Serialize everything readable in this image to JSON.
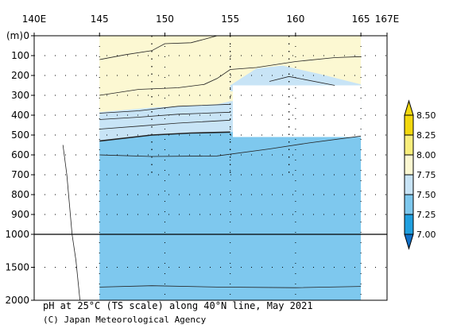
{
  "chart_data": {
    "type": "contour",
    "title": "pH at 25°C (TS scale) along 40°N line, May 2021",
    "credit": "(C) Japan Meteorological Agency",
    "ylabel": "(m)",
    "x_ticks": [
      {
        "value": 140,
        "label": "140E"
      },
      {
        "value": 145,
        "label": "145"
      },
      {
        "value": 150,
        "label": "150"
      },
      {
        "value": 155,
        "label": "155"
      },
      {
        "value": 160,
        "label": "160"
      },
      {
        "value": 165,
        "label": "165"
      },
      {
        "value": 167,
        "label": "167E"
      }
    ],
    "xlim": [
      140,
      167
    ],
    "y_ticks_upper": [
      0,
      100,
      200,
      300,
      400,
      500,
      600,
      700,
      800,
      900,
      1000
    ],
    "y_ticks_lower": [
      1000,
      1500,
      2000
    ],
    "ylim": [
      0,
      2000
    ],
    "y_break": 1000,
    "colorbar": {
      "labels": [
        "8.50",
        "8.25",
        "8.00",
        "7.75",
        "7.50",
        "7.25",
        "7.00"
      ],
      "levels": [
        8.5,
        8.25,
        8.0,
        7.75,
        7.5,
        7.25,
        7.0
      ],
      "colors": [
        "#f2d80e",
        "#f8ee7c",
        "#fcf8d2",
        "#c8e4f6",
        "#7ec8ee",
        "#20a0e0"
      ]
    },
    "section_xrange": [
      145,
      165
    ],
    "station_lons": [
      149,
      155,
      159.5
    ],
    "bands": [
      {
        "range": "7.75-8.00",
        "color": "#fcf8d2",
        "top": [
          [
            145,
            0
          ],
          [
            165,
            0
          ]
        ],
        "bottom": [
          [
            145,
            385
          ],
          [
            149,
            362
          ],
          [
            154,
            345
          ],
          [
            155,
            330
          ],
          [
            158,
            312
          ],
          [
            160,
            310
          ],
          [
            165,
            300
          ]
        ]
      },
      {
        "range": "7.50-7.75",
        "color": "#c8e4f6",
        "top": [
          [
            145,
            385
          ],
          [
            149,
            362
          ],
          [
            154,
            345
          ],
          [
            155,
            330
          ],
          [
            158,
            312
          ],
          [
            160,
            310
          ],
          [
            165,
            300
          ]
        ],
        "bottom": [
          [
            145,
            530
          ],
          [
            149,
            500
          ],
          [
            155,
            485
          ],
          [
            160,
            480
          ],
          [
            165,
            470
          ]
        ]
      },
      {
        "range": "7.25-7.50",
        "color": "#7ec8ee",
        "top": [
          [
            145,
            530
          ],
          [
            149,
            500
          ],
          [
            155,
            485
          ],
          [
            160,
            480
          ],
          [
            165,
            470
          ]
        ],
        "bottom": [
          [
            145,
            2000
          ],
          [
            165,
            2000
          ]
        ]
      }
    ],
    "upper_patch": {
      "range": "7.50-7.75",
      "color": "#c8e4f6",
      "points": [
        [
          155,
          250
        ],
        [
          157,
          165
        ],
        [
          159,
          150
        ],
        [
          162,
          195
        ],
        [
          165,
          245
        ],
        [
          165,
          275
        ],
        [
          159,
          270
        ],
        [
          155,
          280
        ]
      ]
    },
    "masked": [
      [
        155.2,
        250
      ],
      [
        165,
        250
      ],
      [
        165,
        510
      ],
      [
        155.2,
        510
      ]
    ],
    "contours": [
      {
        "level": 8.0,
        "points": [
          [
            145,
            120
          ],
          [
            147,
            95
          ],
          [
            149,
            75
          ],
          [
            150,
            40
          ],
          [
            152,
            35
          ],
          [
            153,
            18
          ],
          [
            154,
            0
          ]
        ]
      },
      {
        "level": 7.75,
        "points": [
          [
            145,
            300
          ],
          [
            148,
            270
          ],
          [
            151,
            262
          ],
          [
            153,
            245
          ],
          [
            154,
            215
          ],
          [
            155,
            170
          ],
          [
            157,
            160
          ],
          [
            160,
            130
          ],
          [
            163,
            110
          ],
          [
            165,
            105
          ]
        ]
      },
      {
        "level": 7.75,
        "points": [
          [
            158,
            230
          ],
          [
            159.5,
            205
          ],
          [
            163,
            250
          ]
        ]
      },
      {
        "level": 7.7,
        "points": [
          [
            145,
            390
          ],
          [
            148,
            378
          ],
          [
            151,
            355
          ],
          [
            155,
            345
          ]
        ]
      },
      {
        "level": 7.65,
        "points": [
          [
            145,
            422
          ],
          [
            148,
            410
          ],
          [
            151,
            395
          ],
          [
            155,
            385
          ]
        ]
      },
      {
        "level": 7.6,
        "points": [
          [
            145,
            470
          ],
          [
            148,
            455
          ],
          [
            151,
            440
          ],
          [
            155,
            425
          ]
        ]
      },
      {
        "level": 7.5,
        "points": [
          [
            145,
            530
          ],
          [
            149,
            500
          ],
          [
            152,
            490
          ],
          [
            155,
            485
          ]
        ],
        "bold": true
      },
      {
        "level": 7.45,
        "points": [
          [
            145,
            600
          ],
          [
            149,
            608
          ],
          [
            154,
            605
          ],
          [
            158,
            570
          ],
          [
            161,
            540
          ],
          [
            165,
            505
          ]
        ]
      },
      {
        "level": 7.4,
        "points": [
          [
            145,
            1800
          ],
          [
            149,
            1780
          ],
          [
            154,
            1800
          ],
          [
            160,
            1810
          ],
          [
            165,
            1790
          ]
        ]
      },
      {
        "level": 7.4,
        "points": [
          [
            142.2,
            550
          ],
          [
            142.5,
            700
          ],
          [
            142.7,
            850
          ],
          [
            142.9,
            1000
          ],
          [
            143.2,
            1400
          ],
          [
            143.5,
            2000
          ]
        ]
      }
    ]
  }
}
